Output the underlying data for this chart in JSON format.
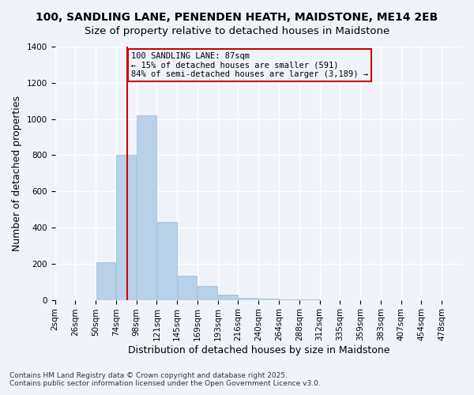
{
  "title_line1": "100, SANDLING LANE, PENENDEN HEATH, MAIDSTONE, ME14 2EB",
  "title_line2": "Size of property relative to detached houses in Maidstone",
  "xlabel": "Distribution of detached houses by size in Maidstone",
  "ylabel": "Number of detached properties",
  "footnote1": "Contains HM Land Registry data © Crown copyright and database right 2025.",
  "footnote2": "Contains public sector information licensed under the Open Government Licence v3.0.",
  "bar_edges": [
    2,
    26,
    50,
    74,
    98,
    122,
    146,
    170,
    194,
    218,
    242,
    266,
    290,
    314,
    338,
    362,
    386,
    410,
    434,
    458,
    482
  ],
  "bar_labels": [
    "2sqm",
    "26sqm",
    "50sqm",
    "74sqm",
    "98sqm",
    "121sqm",
    "145sqm",
    "169sqm",
    "193sqm",
    "216sqm",
    "240sqm",
    "264sqm",
    "288sqm",
    "312sqm",
    "335sqm",
    "359sqm",
    "383sqm",
    "407sqm",
    "454sqm",
    "478sqm"
  ],
  "bar_heights": [
    0,
    0,
    210,
    800,
    1020,
    430,
    135,
    75,
    30,
    10,
    5,
    2,
    1,
    0,
    0,
    0,
    0,
    0,
    0,
    0
  ],
  "bar_color": "#b8d0e8",
  "bar_edgecolor": "#a0b8d0",
  "property_value": 87,
  "property_line_color": "#cc0000",
  "annotation_text": "100 SANDLING LANE: 87sqm\n← 15% of detached houses are smaller (591)\n84% of semi-detached houses are larger (3,189) →",
  "annotation_box_color": "#cc0000",
  "ylim": [
    0,
    1400
  ],
  "yticks": [
    0,
    200,
    400,
    600,
    800,
    1000,
    1200,
    1400
  ],
  "background_color": "#f0f4fa",
  "grid_color": "#ffffff",
  "title_fontsize": 10,
  "axis_label_fontsize": 9,
  "tick_fontsize": 7.5
}
